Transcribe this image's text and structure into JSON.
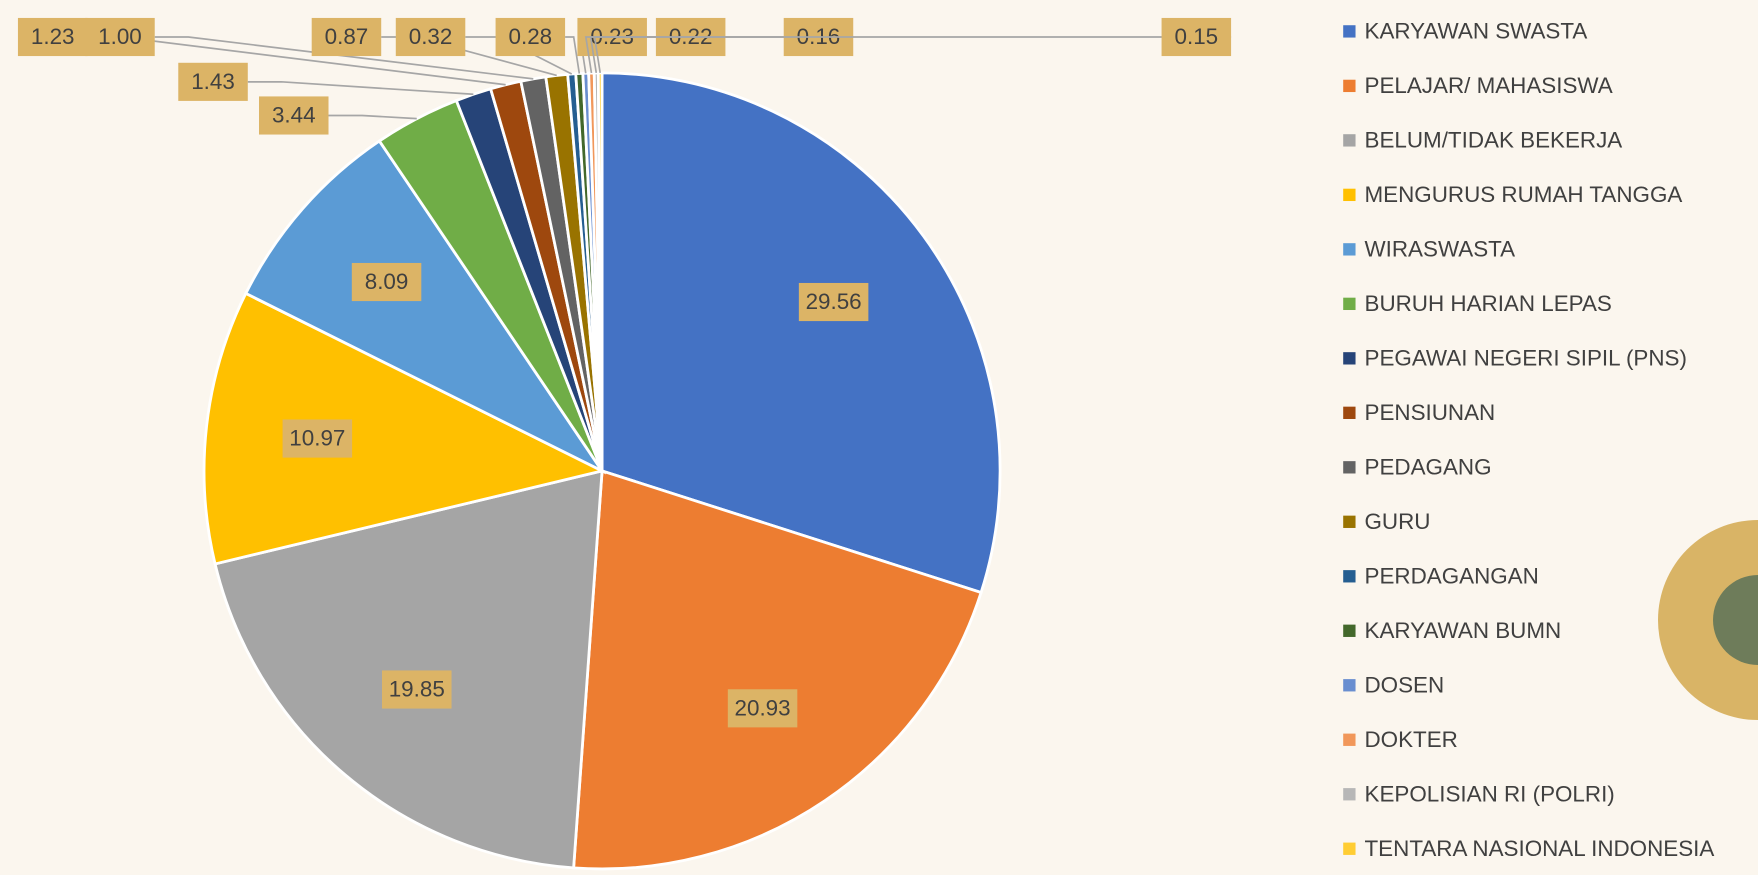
{
  "chart_data": {
    "type": "pie",
    "categories": [
      "KARYAWAN SWASTA",
      "PELAJAR/ MAHASISWA",
      "BELUM/TIDAK BEKERJA",
      "MENGURUS RUMAH TANGGA",
      "WIRASWASTA",
      "BURUH HARIAN LEPAS",
      "PEGAWAI NEGERI SIPIL (PNS)",
      "PENSIUNAN",
      "PEDAGANG",
      "GURU",
      "PERDAGANGAN",
      "KARYAWAN BUMN",
      "DOSEN",
      "DOKTER",
      "KEPOLISIAN RI (POLRI)",
      "TENTARA NASIONAL INDONESIA"
    ],
    "values": [
      29.56,
      20.93,
      19.85,
      10.97,
      8.09,
      3.44,
      1.43,
      1.23,
      1.0,
      0.87,
      0.32,
      0.28,
      0.23,
      0.22,
      0.16,
      0.15
    ],
    "value_labels": [
      "29.56",
      "20.93",
      "19.85",
      "10.97",
      "8.09",
      "3.44",
      "1.43",
      "1.23",
      "1.00",
      "0.87",
      "0.32",
      "0.28",
      "0.23",
      "0.22",
      "0.16",
      "0.15"
    ],
    "colors": [
      "#4472c4",
      "#ed7d31",
      "#a5a5a5",
      "#ffc000",
      "#5b9bd5",
      "#70ad47",
      "#264478",
      "#9e480e",
      "#636363",
      "#997300",
      "#255e91",
      "#43682b",
      "#698ed0",
      "#f1975a",
      "#b7b7b7",
      "#ffcd33"
    ],
    "legend": "right"
  }
}
